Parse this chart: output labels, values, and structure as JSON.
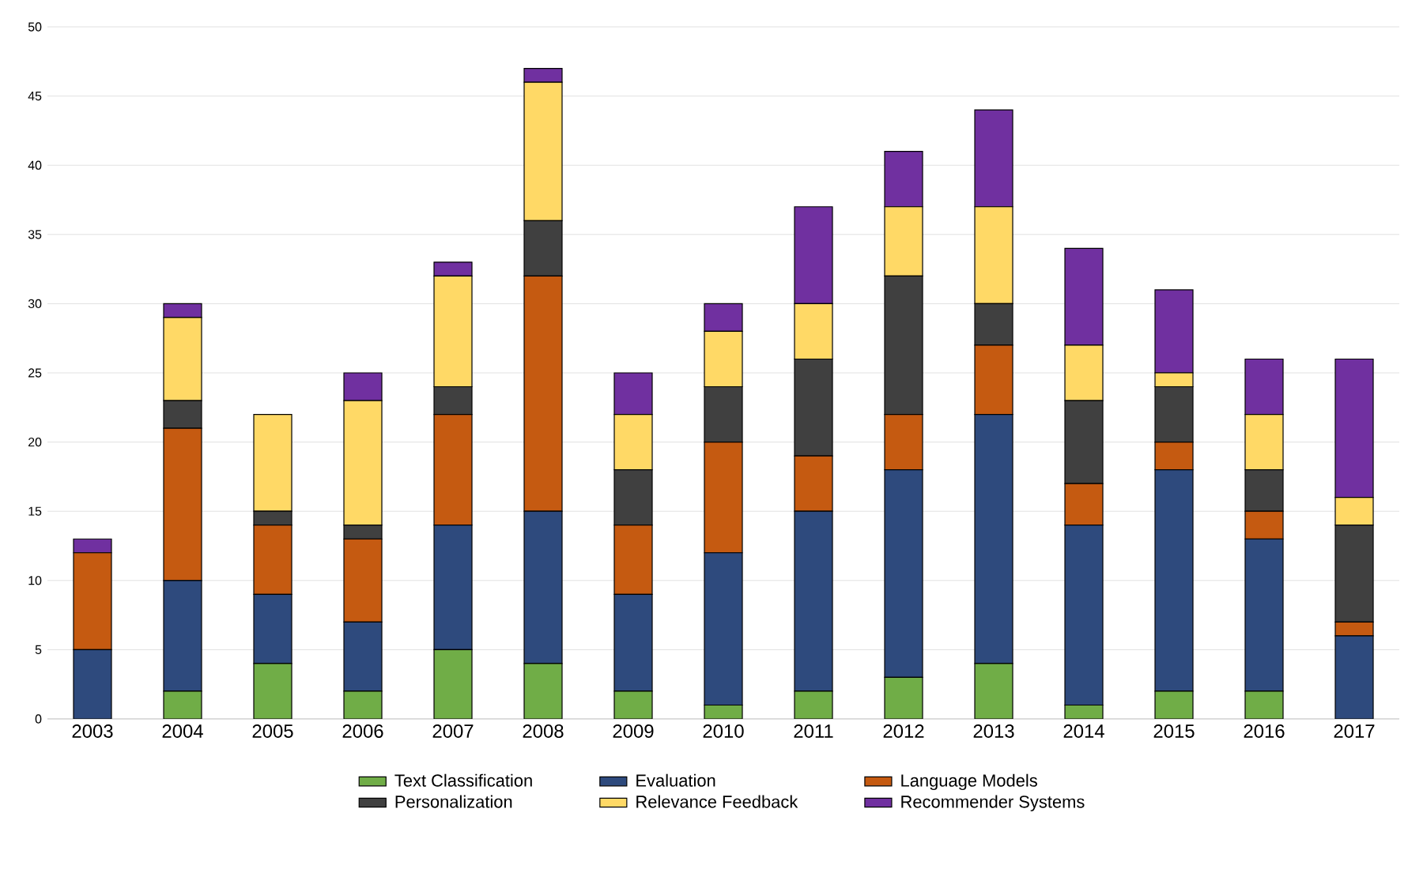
{
  "chart_data": {
    "type": "bar",
    "stacked": true,
    "categories": [
      "2003",
      "2004",
      "2005",
      "2006",
      "2007",
      "2008",
      "2009",
      "2010",
      "2011",
      "2012",
      "2013",
      "2014",
      "2015",
      "2016",
      "2017"
    ],
    "series": [
      {
        "name": "Text Classification",
        "color": "#70ad47",
        "values": [
          0,
          2,
          4,
          2,
          5,
          4,
          2,
          1,
          2,
          3,
          4,
          1,
          2,
          2,
          0
        ]
      },
      {
        "name": "Evaluation",
        "color": "#2e4a7d",
        "values": [
          5,
          8,
          5,
          5,
          9,
          11,
          7,
          11,
          13,
          15,
          18,
          13,
          16,
          11,
          6
        ]
      },
      {
        "name": "Language Models",
        "color": "#c55a11",
        "values": [
          7,
          11,
          5,
          6,
          8,
          17,
          5,
          8,
          4,
          4,
          5,
          3,
          2,
          2,
          1
        ]
      },
      {
        "name": "Personalization",
        "color": "#404040",
        "values": [
          0,
          2,
          1,
          1,
          2,
          4,
          4,
          4,
          7,
          10,
          3,
          6,
          4,
          3,
          7
        ]
      },
      {
        "name": "Relevance Feedback",
        "color": "#ffd966",
        "values": [
          0,
          6,
          7,
          9,
          8,
          10,
          4,
          4,
          4,
          5,
          7,
          4,
          1,
          4,
          2
        ]
      },
      {
        "name": "Recommender Systems",
        "color": "#7030a0",
        "values": [
          1,
          1,
          0,
          2,
          1,
          1,
          3,
          2,
          7,
          4,
          7,
          7,
          6,
          4,
          10
        ]
      }
    ],
    "ylim": [
      0,
      50
    ],
    "yticks": [
      0,
      5,
      10,
      15,
      20,
      25,
      30,
      35,
      40,
      45,
      50
    ],
    "grid": "y",
    "legend": "bottom"
  }
}
